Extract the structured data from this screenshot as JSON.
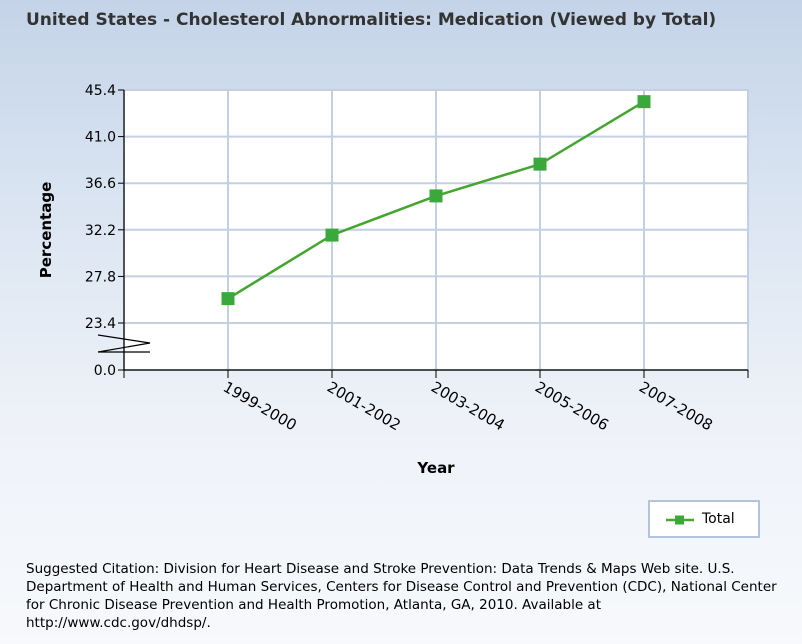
{
  "chart_data": {
    "type": "line",
    "title": "United States - Cholesterol Abnormalities: Medication (Viewed by Total)",
    "xlabel": "Year",
    "ylabel": "Percentage",
    "categories": [
      "1999-2000",
      "2001-2002",
      "2003-2004",
      "2005-2006",
      "2007-2008"
    ],
    "series": [
      {
        "name": "Total",
        "values": [
          25.7,
          31.7,
          35.4,
          38.4,
          44.3
        ],
        "color": "#44a52f"
      }
    ],
    "y_ticks": [
      "0.0",
      "23.4",
      "27.8",
      "32.2",
      "36.6",
      "41.0",
      "45.4"
    ],
    "ylim": [
      0,
      45.4
    ],
    "y_axis_break": true,
    "grid": true,
    "legend_position": "bottom-right"
  },
  "citation": "Suggested Citation: Division for Heart Disease and Stroke Prevention: Data Trends & Maps Web site. U.S. Department of Health and Human Services, Centers for Disease Control and Prevention (CDC), National Center for Chronic Disease Prevention and Health Promotion, Atlanta, GA, 2010. Available at http://www.cdc.gov/dhdsp/."
}
